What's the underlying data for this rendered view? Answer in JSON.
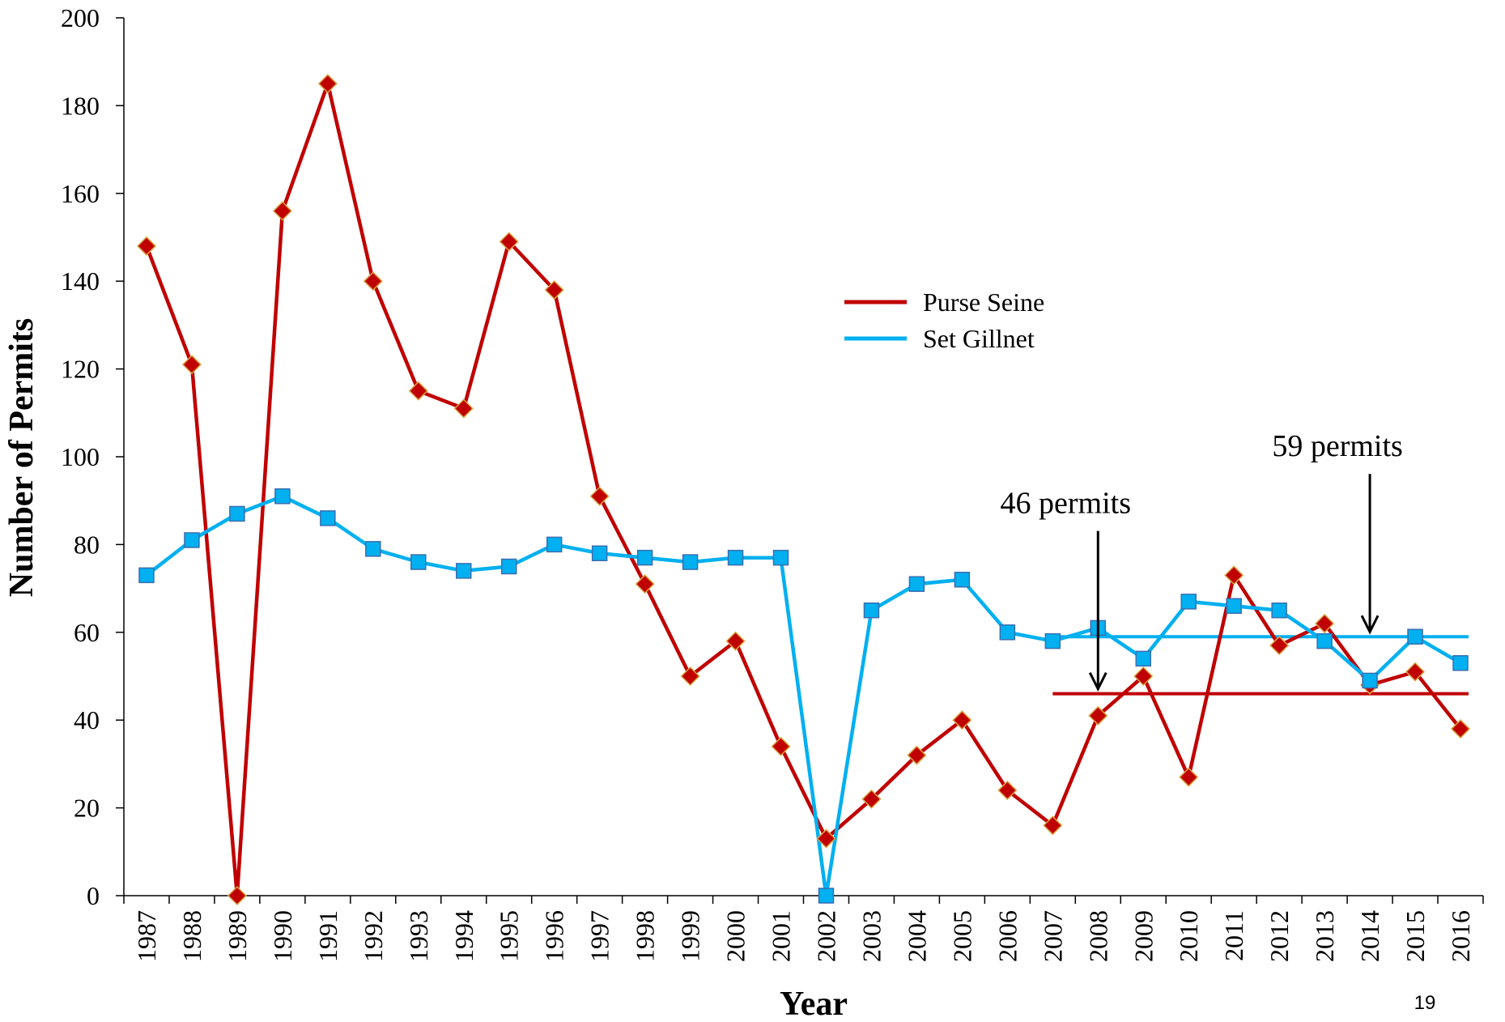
{
  "chart_data": {
    "type": "line",
    "title": "",
    "xlabel": "Year",
    "ylabel": "Number of Permits",
    "ylim": [
      0,
      200
    ],
    "yticks": [
      0,
      20,
      40,
      60,
      80,
      100,
      120,
      140,
      160,
      180,
      200
    ],
    "x": [
      "1987",
      "1988",
      "1989",
      "1990",
      "1991",
      "1992",
      "1993",
      "1994",
      "1995",
      "1996",
      "1997",
      "1998",
      "1999",
      "2000",
      "2001",
      "2002",
      "2003",
      "2004",
      "2005",
      "2006",
      "2007",
      "2008",
      "2009",
      "2010",
      "2011",
      "2012",
      "2013",
      "2014",
      "2015",
      "2016"
    ],
    "series": [
      {
        "name": "Purse Seine",
        "color": "#c00000",
        "marker": "diamond",
        "values": [
          148,
          121,
          0,
          156,
          185,
          140,
          115,
          111,
          149,
          138,
          91,
          71,
          50,
          58,
          34,
          13,
          22,
          32,
          40,
          24,
          16,
          41,
          50,
          27,
          73,
          57,
          62,
          48,
          51,
          38
        ]
      },
      {
        "name": "Set Gillnet",
        "color": "#00b0f0",
        "marker": "square",
        "values": [
          73,
          81,
          87,
          91,
          86,
          79,
          76,
          74,
          75,
          80,
          78,
          77,
          76,
          77,
          77,
          0,
          65,
          71,
          72,
          60,
          58,
          61,
          54,
          67,
          66,
          65,
          58,
          49,
          59,
          53
        ]
      }
    ],
    "reference_lines": [
      {
        "series": "Purse Seine",
        "value": 46,
        "from": "2007",
        "to": "2016",
        "color": "#c00000"
      },
      {
        "series": "Set Gillnet",
        "value": 59,
        "from": "2007",
        "to": "2016",
        "color": "#00b0f0"
      }
    ],
    "annotations": [
      {
        "text": "46 permits",
        "arrow_x": "2008",
        "arrow_to": 46
      },
      {
        "text": "59 permits",
        "arrow_x": "2014",
        "arrow_to": 59
      }
    ],
    "legend_position": "center-right",
    "grid": false
  },
  "page_number": "19"
}
